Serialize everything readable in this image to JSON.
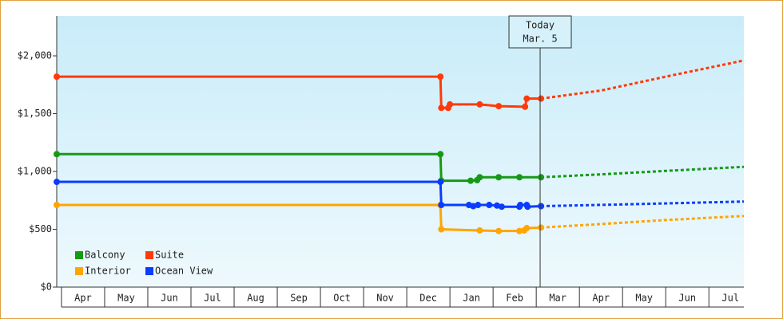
{
  "chart_data": {
    "type": "line",
    "xlim": [
      -0.11,
      15.81
    ],
    "xticks": [
      {
        "value": 0.5,
        "label": "Apr"
      },
      {
        "value": 1.5,
        "label": "May"
      },
      {
        "value": 2.5,
        "label": "Jun"
      },
      {
        "value": 3.5,
        "label": "Jul"
      },
      {
        "value": 4.5,
        "label": "Aug"
      },
      {
        "value": 5.5,
        "label": "Sep"
      },
      {
        "value": 6.5,
        "label": "Oct"
      },
      {
        "value": 7.5,
        "label": "Nov"
      },
      {
        "value": 8.5,
        "label": "Dec"
      },
      {
        "value": 9.5,
        "label": "Jan"
      },
      {
        "value": 10.5,
        "label": "Feb"
      },
      {
        "value": 11.5,
        "label": "Mar"
      },
      {
        "value": 12.5,
        "label": "Apr"
      },
      {
        "value": 13.5,
        "label": "May"
      },
      {
        "value": 14.5,
        "label": "Jun"
      },
      {
        "value": 15.5,
        "label": "Jul"
      }
    ],
    "ylim": [
      0,
      2345
    ],
    "yticks": [
      {
        "value": 0,
        "label": "$0"
      },
      {
        "value": 500,
        "label": "$500"
      },
      {
        "value": 1000,
        "label": "$1,000"
      },
      {
        "value": 1500,
        "label": "$1,500"
      },
      {
        "value": 2000,
        "label": "$2,000"
      }
    ],
    "annotation": {
      "x": 11.09,
      "lines": [
        "Today",
        "Mar. 5"
      ]
    },
    "series": [
      {
        "name": "Balcony",
        "color": "#159a15",
        "x": [
          -0.11,
          8.78,
          8.8,
          9.48,
          9.63,
          9.69,
          10.13,
          10.61,
          11.11
        ],
        "values": [
          1150,
          1150,
          920,
          920,
          925,
          950,
          950,
          950,
          950
        ],
        "forecast": {
          "x": [
            11.11,
            12.5,
            14,
            15.81
          ],
          "values": [
            950,
            975,
            1005,
            1040
          ]
        }
      },
      {
        "name": "Suite",
        "color": "#ff3a0a",
        "x": [
          -0.11,
          8.78,
          8.8,
          8.96,
          9.0,
          9.69,
          10.13,
          10.74,
          10.78,
          11.11
        ],
        "values": [
          1820,
          1820,
          1550,
          1550,
          1580,
          1580,
          1565,
          1560,
          1630,
          1630
        ],
        "forecast": {
          "x": [
            11.11,
            12.5,
            14,
            15.81
          ],
          "values": [
            1630,
            1700,
            1820,
            1960
          ]
        }
      },
      {
        "name": "Interior",
        "color": "#ffa500",
        "x": [
          -0.11,
          8.78,
          8.8,
          9.69,
          10.13,
          10.61,
          10.72,
          10.78,
          11.11
        ],
        "values": [
          710,
          710,
          500,
          490,
          485,
          485,
          490,
          510,
          515
        ],
        "forecast": {
          "x": [
            11.11,
            12.5,
            14,
            15.81
          ],
          "values": [
            515,
            545,
            580,
            615
          ]
        }
      },
      {
        "name": "Ocean View",
        "color": "#0a3cff",
        "x": [
          -0.11,
          8.78,
          8.8,
          9.44,
          9.54,
          9.65,
          9.91,
          10.09,
          10.2,
          10.61,
          10.63,
          10.78,
          10.8,
          11.11
        ],
        "values": [
          910,
          910,
          710,
          710,
          700,
          710,
          710,
          705,
          695,
          695,
          710,
          710,
          695,
          700
        ],
        "forecast": {
          "x": [
            11.11,
            13,
            15.81
          ],
          "values": [
            700,
            715,
            740
          ]
        }
      }
    ]
  }
}
